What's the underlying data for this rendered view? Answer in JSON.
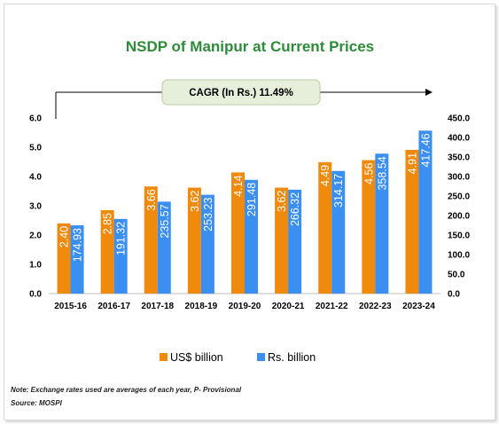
{
  "chart_data": {
    "type": "bar",
    "title": "NSDP of Manipur at Current Prices",
    "annotation": "CAGR (In Rs.) 11.49%",
    "categories": [
      "2015-16",
      "2016-17",
      "2017-18",
      "2018-19",
      "2019-20",
      "2020-21",
      "2021-22",
      "2022-23",
      "2023-24"
    ],
    "series": [
      {
        "name": "US$ billion",
        "axis": "left",
        "color": "#f08a0c",
        "values": [
          2.4,
          2.85,
          3.66,
          3.62,
          4.14,
          3.62,
          4.49,
          4.56,
          4.91
        ],
        "labels": [
          "2.40",
          "2.85",
          "3.66",
          "3.62",
          "4.14",
          "3.62",
          "4.49",
          "4.56",
          "4.91"
        ]
      },
      {
        "name": "Rs. billion",
        "axis": "right",
        "color": "#3a8ff0",
        "values": [
          174.93,
          191.32,
          235.57,
          253.23,
          291.48,
          266.32,
          314.17,
          358.54,
          417.46
        ],
        "labels": [
          "174.93",
          "191.32",
          "235.57",
          "253.23",
          "291.48",
          "266.32",
          "314.17",
          "358.54",
          "417.46"
        ]
      }
    ],
    "ylim_left": [
      0,
      6.0
    ],
    "yticks_left": [
      "0.0",
      "1.0",
      "2.0",
      "3.0",
      "4.0",
      "5.0",
      "6.0"
    ],
    "ylim_right": [
      0,
      450
    ],
    "yticks_right": [
      "0.0",
      "50.0",
      "100.0",
      "150.0",
      "200.0",
      "250.0",
      "300.0",
      "350.0",
      "400.0",
      "450.0"
    ],
    "legend_position": "bottom",
    "grid": false
  },
  "footer": {
    "note": "Note: Exchange rates used are averages of each year, P- Provisional",
    "source": "Source: MOSPI"
  }
}
